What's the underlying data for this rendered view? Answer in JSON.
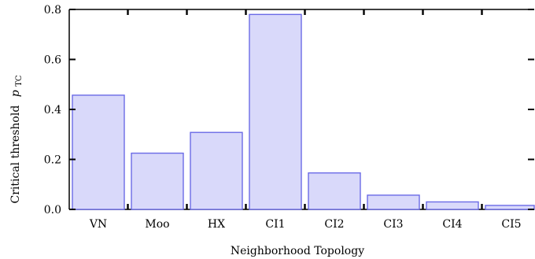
{
  "chart_data": {
    "type": "bar",
    "categories": [
      "VN",
      "Moo",
      "HX",
      "CI1",
      "CI2",
      "CI3",
      "CI4",
      "CI5"
    ],
    "values": [
      0.457,
      0.225,
      0.308,
      0.78,
      0.146,
      0.057,
      0.03,
      0.016
    ],
    "xlabel": "Neighborhood Topology",
    "ylabel": "Critical threshold",
    "ylabel_symbol": "p",
    "ylabel_subscript": "TC",
    "ylim": [
      0,
      0.8
    ],
    "yticks": [
      "0.0",
      "0.2",
      "0.4",
      "0.6",
      "0.8"
    ],
    "grid": false,
    "colors": {
      "bar_fill": "#d9d9fa",
      "bar_stroke": "#6b6be6",
      "axis": "#000000"
    }
  }
}
